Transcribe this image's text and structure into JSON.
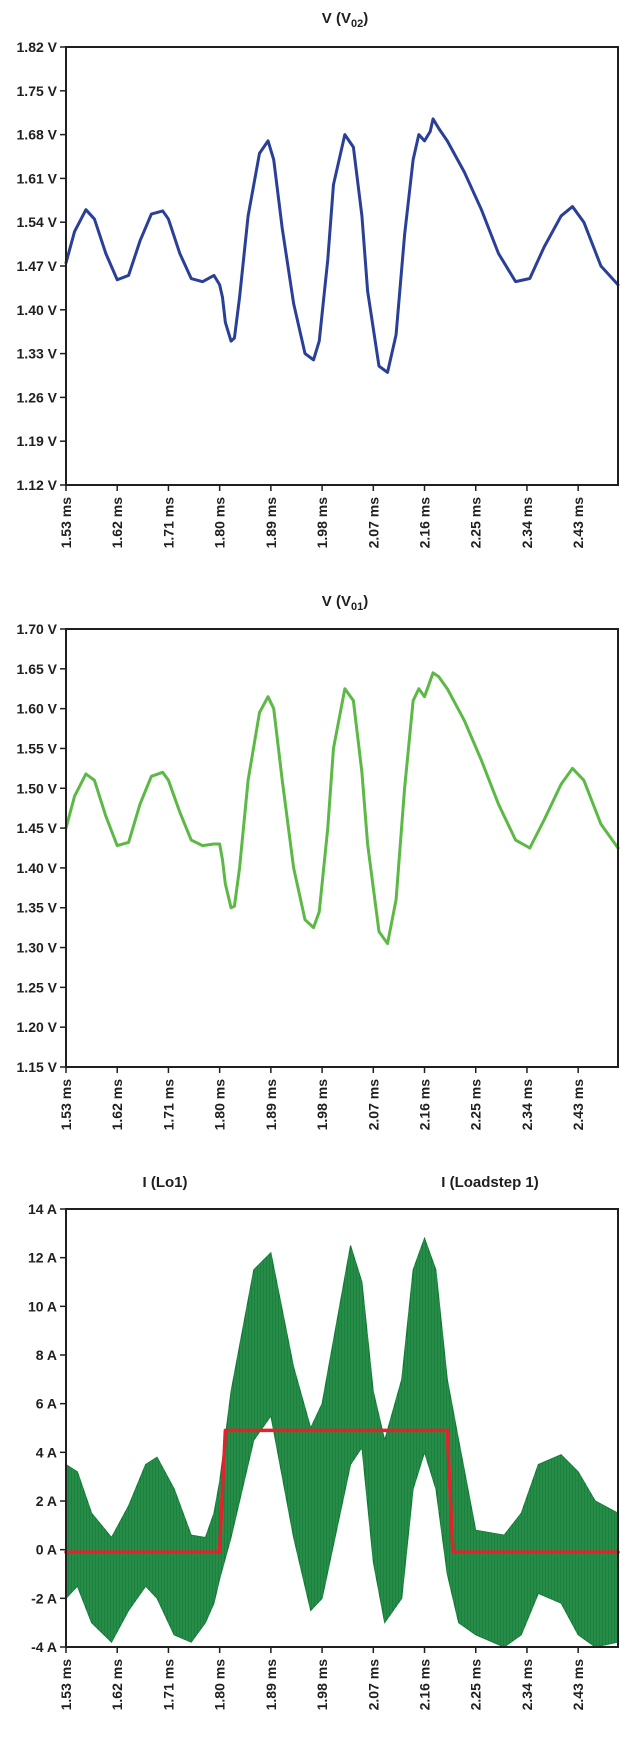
{
  "chart_data": [
    {
      "type": "line",
      "title_main": "V (V",
      "title_sub": "02",
      "title_end": ")",
      "color": "#2a3f97",
      "ylim": [
        1.12,
        1.82
      ],
      "xlim": [
        1.53,
        2.5
      ],
      "yticks": [
        "1.12 V",
        "1.19 V",
        "1.26 V",
        "1.33 V",
        "1.40 V",
        "1.47 V",
        "1.54 V",
        "1.61 V",
        "1.68 V",
        "1.75 V",
        "1.82 V"
      ],
      "ytick_values": [
        1.12,
        1.19,
        1.26,
        1.33,
        1.4,
        1.47,
        1.54,
        1.61,
        1.68,
        1.75,
        1.82
      ],
      "xticks": [
        "1.53 ms",
        "1.62 ms",
        "1.71 ms",
        "1.80 ms",
        "1.89 ms",
        "1.98 ms",
        "2.07 ms",
        "2.16 ms",
        "2.25 ms",
        "2.34 ms",
        "2.43 ms"
      ],
      "xtick_values": [
        1.53,
        1.62,
        1.71,
        1.8,
        1.89,
        1.98,
        2.07,
        2.16,
        2.25,
        2.34,
        2.43
      ],
      "series": [
        {
          "x": [
            1.53,
            1.545,
            1.565,
            1.58,
            1.6,
            1.62,
            1.64,
            1.66,
            1.68,
            1.7,
            1.71,
            1.73,
            1.75,
            1.77,
            1.79,
            1.8,
            1.805,
            1.81,
            1.82,
            1.826,
            1.835,
            1.85,
            1.87,
            1.885,
            1.895,
            1.91,
            1.93,
            1.95,
            1.965,
            1.975,
            1.99,
            2.0,
            2.02,
            2.035,
            2.05,
            2.06,
            2.08,
            2.095,
            2.11,
            2.125,
            2.14,
            2.15,
            2.16,
            2.17,
            2.175,
            2.185,
            2.2,
            2.23,
            2.26,
            2.29,
            2.32,
            2.345,
            2.37,
            2.4,
            2.42,
            2.44,
            2.47,
            2.5
          ],
          "y": [
            1.475,
            1.525,
            1.56,
            1.545,
            1.49,
            1.448,
            1.455,
            1.51,
            1.553,
            1.558,
            1.545,
            1.49,
            1.45,
            1.445,
            1.455,
            1.44,
            1.42,
            1.38,
            1.35,
            1.355,
            1.42,
            1.55,
            1.65,
            1.67,
            1.64,
            1.53,
            1.41,
            1.33,
            1.32,
            1.35,
            1.48,
            1.6,
            1.68,
            1.66,
            1.55,
            1.43,
            1.31,
            1.3,
            1.36,
            1.52,
            1.64,
            1.68,
            1.67,
            1.685,
            1.705,
            1.69,
            1.67,
            1.62,
            1.56,
            1.49,
            1.445,
            1.45,
            1.5,
            1.55,
            1.565,
            1.54,
            1.47,
            1.44
          ]
        }
      ]
    },
    {
      "type": "line",
      "title_main": "V (V",
      "title_sub": "01",
      "title_end": ")",
      "color": "#5cb946",
      "ylim": [
        1.15,
        1.7
      ],
      "xlim": [
        1.53,
        2.5
      ],
      "yticks": [
        "1.15 V",
        "1.20 V",
        "1.25 V",
        "1.30 V",
        "1.35 V",
        "1.40 V",
        "1.45 V",
        "1.50 V",
        "1.55 V",
        "1.60 V",
        "1.65 V",
        "1.70 V"
      ],
      "ytick_values": [
        1.15,
        1.2,
        1.25,
        1.3,
        1.35,
        1.4,
        1.45,
        1.5,
        1.55,
        1.6,
        1.65,
        1.7
      ],
      "xticks": [
        "1.53 ms",
        "1.62 ms",
        "1.71 ms",
        "1.80 ms",
        "1.89 ms",
        "1.98 ms",
        "2.07 ms",
        "2.16 ms",
        "2.25 ms",
        "2.34 ms",
        "2.43 ms"
      ],
      "xtick_values": [
        1.53,
        1.62,
        1.71,
        1.8,
        1.89,
        1.98,
        2.07,
        2.16,
        2.25,
        2.34,
        2.43
      ],
      "series": [
        {
          "x": [
            1.53,
            1.545,
            1.565,
            1.58,
            1.6,
            1.62,
            1.64,
            1.66,
            1.68,
            1.7,
            1.71,
            1.73,
            1.75,
            1.77,
            1.79,
            1.8,
            1.805,
            1.81,
            1.82,
            1.826,
            1.835,
            1.85,
            1.87,
            1.885,
            1.895,
            1.91,
            1.93,
            1.95,
            1.965,
            1.975,
            1.99,
            2.0,
            2.02,
            2.035,
            2.05,
            2.06,
            2.08,
            2.095,
            2.11,
            2.125,
            2.14,
            2.15,
            2.16,
            2.17,
            2.175,
            2.185,
            2.2,
            2.23,
            2.26,
            2.29,
            2.32,
            2.345,
            2.37,
            2.4,
            2.42,
            2.44,
            2.47,
            2.5
          ],
          "y": [
            1.45,
            1.49,
            1.518,
            1.51,
            1.465,
            1.428,
            1.432,
            1.48,
            1.515,
            1.52,
            1.51,
            1.47,
            1.435,
            1.428,
            1.43,
            1.43,
            1.41,
            1.38,
            1.35,
            1.352,
            1.4,
            1.51,
            1.595,
            1.615,
            1.6,
            1.51,
            1.4,
            1.335,
            1.325,
            1.345,
            1.45,
            1.55,
            1.625,
            1.61,
            1.52,
            1.43,
            1.32,
            1.305,
            1.36,
            1.5,
            1.61,
            1.625,
            1.615,
            1.635,
            1.645,
            1.64,
            1.625,
            1.585,
            1.535,
            1.48,
            1.435,
            1.425,
            1.46,
            1.505,
            1.525,
            1.51,
            1.455,
            1.425
          ]
        }
      ]
    },
    {
      "type": "line",
      "legend": [
        "I (Lo1)",
        "I (Loadstep 1)"
      ],
      "ylim": [
        -4,
        14
      ],
      "xlim": [
        1.53,
        2.5
      ],
      "yticks": [
        "-4 A",
        "-2 A",
        "0 A",
        "2 A",
        "4 A",
        "6 A",
        "8 A",
        "10 A",
        "12 A",
        "14 A"
      ],
      "ytick_values": [
        -4,
        -2,
        0,
        2,
        4,
        6,
        8,
        10,
        12,
        14
      ],
      "xticks": [
        "1.53 ms",
        "1.62 ms",
        "1.71 ms",
        "1.80 ms",
        "1.89 ms",
        "1.98 ms",
        "2.07 ms",
        "2.16 ms",
        "2.25 ms",
        "2.34 ms",
        "2.43 ms"
      ],
      "xtick_values": [
        1.53,
        1.62,
        1.71,
        1.8,
        1.89,
        1.98,
        2.07,
        2.16,
        2.25,
        2.34,
        2.43
      ],
      "series": [
        {
          "name": "I (Lo1)",
          "color": "#0f7a34",
          "x": [
            1.53,
            1.55,
            1.575,
            1.61,
            1.64,
            1.67,
            1.69,
            1.72,
            1.75,
            1.775,
            1.79,
            1.8,
            1.82,
            1.86,
            1.89,
            1.93,
            1.96,
            1.98,
            2.03,
            2.05,
            2.07,
            2.09,
            2.12,
            2.14,
            2.16,
            2.18,
            2.2,
            2.22,
            2.25,
            2.3,
            2.33,
            2.36,
            2.4,
            2.43,
            2.46,
            2.5
          ],
          "upper": [
            3.5,
            3.2,
            1.5,
            0.5,
            1.8,
            3.5,
            3.8,
            2.5,
            0.6,
            0.5,
            1.5,
            2.8,
            6.5,
            11.5,
            12.2,
            7.5,
            5.0,
            6.0,
            12.5,
            11.0,
            6.5,
            4.5,
            7.0,
            11.5,
            12.8,
            11.5,
            7.0,
            4.5,
            0.8,
            0.6,
            1.5,
            3.5,
            3.9,
            3.2,
            2.0,
            1.5
          ],
          "lower": [
            -2.0,
            -1.5,
            -3.0,
            -3.8,
            -2.5,
            -1.5,
            -2.0,
            -3.5,
            -3.8,
            -3.0,
            -2.2,
            -1.2,
            0.5,
            4.5,
            5.5,
            0.5,
            -2.5,
            -2.0,
            3.5,
            4.2,
            -0.5,
            -3.0,
            -2.0,
            2.5,
            4.0,
            2.5,
            -1.0,
            -3.0,
            -3.5,
            -4.0,
            -3.5,
            -1.8,
            -2.2,
            -3.5,
            -4.0,
            -3.8
          ]
        },
        {
          "name": "I (Loadstep 1)",
          "color": "#e3232c",
          "x": [
            1.53,
            1.8,
            1.8,
            1.81,
            2.2,
            2.2,
            2.21,
            2.5
          ],
          "y": [
            -0.1,
            -0.1,
            0.0,
            4.9,
            4.9,
            4.8,
            -0.1,
            -0.1
          ]
        }
      ]
    }
  ]
}
